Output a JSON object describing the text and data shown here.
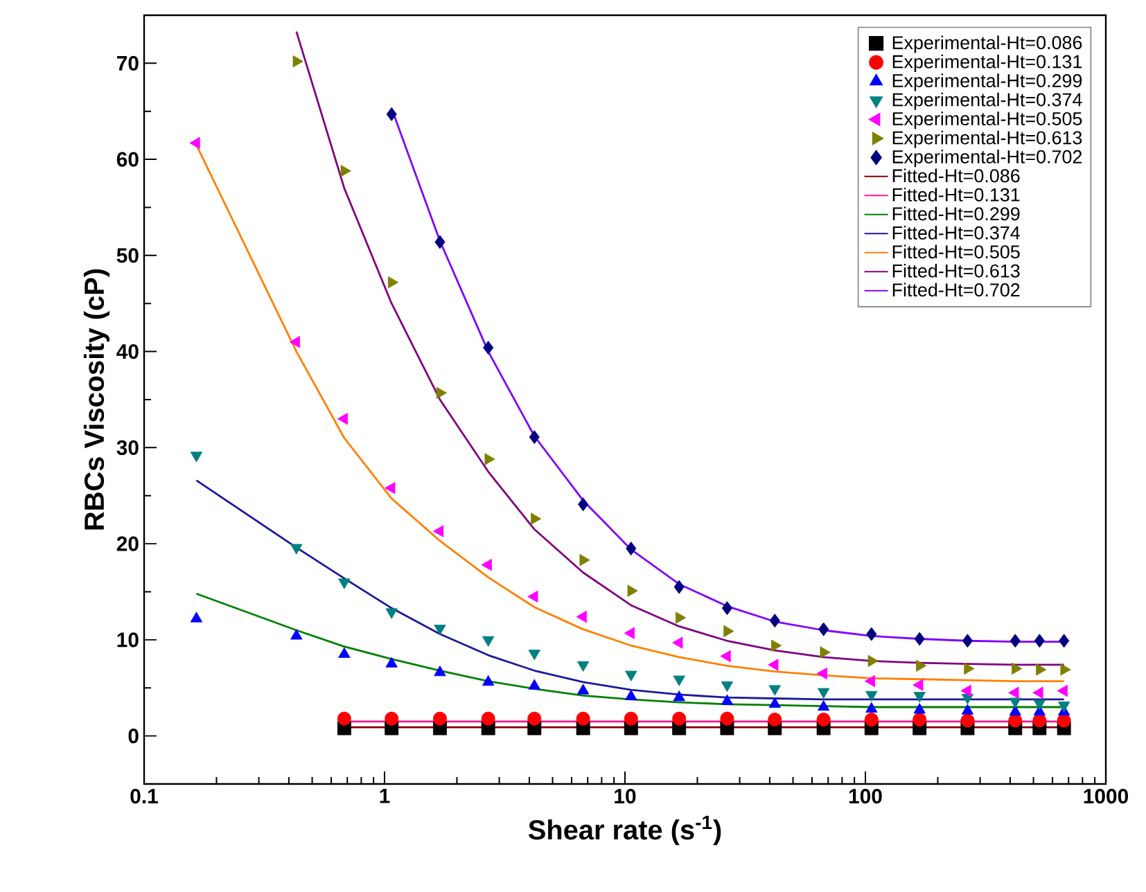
{
  "chart_data": {
    "type": "scatter",
    "xlabel": "Shear rate (s$^{-1}$)",
    "ylabel": "RBCs Viscosity (cP)",
    "log": "x",
    "xlim": [
      0.1,
      1000
    ],
    "ylim": [
      -5,
      75
    ],
    "xticks": [
      0.1,
      1,
      10,
      100,
      1000
    ],
    "yticks": [
      0,
      10,
      20,
      30,
      40,
      50,
      60,
      70
    ],
    "grid": false,
    "legend": "top right",
    "series": [
      {
        "name": "Experimental-Ht=0.086",
        "marker": "square",
        "color": "#000000",
        "x": [
          0.68,
          1.07,
          1.7,
          2.7,
          4.2,
          6.7,
          10.6,
          16.8,
          26.6,
          42,
          67,
          106,
          168,
          266,
          420,
          530,
          670
        ],
        "values": [
          0.8,
          0.8,
          0.8,
          0.8,
          0.8,
          0.8,
          0.8,
          0.8,
          0.8,
          0.8,
          0.8,
          0.8,
          0.8,
          0.8,
          0.8,
          0.8,
          0.8
        ]
      },
      {
        "name": "Experimental-Ht=0.131",
        "marker": "circle",
        "color": "#ff0000",
        "x": [
          0.68,
          1.07,
          1.7,
          2.7,
          4.2,
          6.7,
          10.6,
          16.8,
          26.6,
          42,
          67,
          106,
          168,
          266,
          420,
          530,
          670
        ],
        "values": [
          1.8,
          1.8,
          1.8,
          1.8,
          1.8,
          1.8,
          1.8,
          1.8,
          1.8,
          1.7,
          1.7,
          1.7,
          1.7,
          1.6,
          1.6,
          1.6,
          1.6
        ]
      },
      {
        "name": "Experimental-Ht=0.299",
        "marker": "triangle",
        "color": "#0000ff",
        "x": [
          0.165,
          0.43,
          0.68,
          1.07,
          1.7,
          2.7,
          4.2,
          6.7,
          10.6,
          16.8,
          26.6,
          42,
          67,
          106,
          168,
          266,
          420,
          530,
          670
        ],
        "values": [
          12.2,
          10.4,
          8.5,
          7.5,
          6.6,
          5.6,
          5.2,
          4.7,
          4.1,
          4.0,
          3.6,
          3.3,
          3.0,
          2.8,
          2.7,
          2.6,
          2.5,
          2.5,
          2.5
        ]
      },
      {
        "name": "Experimental-Ht=0.374",
        "marker": "triangle-down",
        "color": "#008080",
        "x": [
          0.165,
          0.43,
          0.68,
          1.07,
          1.7,
          2.7,
          4.2,
          6.7,
          10.6,
          16.8,
          26.6,
          42,
          67,
          106,
          168,
          266,
          420,
          530,
          670
        ],
        "values": [
          29.2,
          19.6,
          16.0,
          12.9,
          11.2,
          10.0,
          8.6,
          7.4,
          6.4,
          5.9,
          5.3,
          4.9,
          4.6,
          4.3,
          4.2,
          4.0,
          3.6,
          3.4,
          3.2
        ]
      },
      {
        "name": "Experimental-Ht=0.505",
        "marker": "triangle-left",
        "color": "#ff00ff",
        "x": [
          0.165,
          0.43,
          0.68,
          1.07,
          1.7,
          2.7,
          4.2,
          6.7,
          10.6,
          16.8,
          26.6,
          42,
          67,
          106,
          168,
          266,
          420,
          530,
          670
        ],
        "values": [
          61.7,
          41.0,
          33.0,
          25.8,
          21.3,
          17.8,
          14.5,
          12.4,
          10.7,
          9.7,
          8.3,
          7.4,
          6.5,
          5.7,
          5.3,
          4.7,
          4.5,
          4.5,
          4.7
        ]
      },
      {
        "name": "Experimental-Ht=0.613",
        "marker": "triangle-right",
        "color": "#808000",
        "x": [
          0.43,
          0.68,
          1.07,
          1.7,
          2.7,
          4.2,
          6.7,
          10.6,
          16.8,
          26.6,
          42,
          67,
          106,
          168,
          266,
          420,
          530,
          670
        ],
        "values": [
          70.2,
          58.8,
          47.2,
          35.7,
          28.8,
          22.6,
          18.3,
          15.1,
          12.3,
          10.9,
          9.4,
          8.7,
          7.8,
          7.3,
          7.0,
          7.0,
          6.9,
          6.9
        ]
      },
      {
        "name": "Experimental-Ht=0.702",
        "marker": "diamond",
        "color": "#000080",
        "x": [
          1.07,
          1.7,
          2.7,
          4.2,
          6.7,
          10.6,
          16.8,
          26.6,
          42,
          67,
          106,
          168,
          266,
          420,
          530,
          670
        ],
        "values": [
          64.7,
          51.4,
          40.4,
          31.1,
          24.1,
          19.5,
          15.5,
          13.3,
          12.0,
          11.1,
          10.6,
          10.1,
          9.9,
          9.9,
          9.9,
          9.9
        ]
      },
      {
        "name": "Fitted-Ht=0.086",
        "type": "line",
        "marker": "none",
        "color": "#800000",
        "x": [
          0.68,
          670
        ],
        "values": [
          0.9,
          0.9
        ]
      },
      {
        "name": "Fitted-Ht=0.131",
        "type": "line",
        "marker": "none",
        "color": "#ff1493",
        "x": [
          0.68,
          670
        ],
        "values": [
          1.5,
          1.5
        ]
      },
      {
        "name": "Fitted-Ht=0.299",
        "type": "line",
        "marker": "none",
        "color": "#008000",
        "x": [
          0.165,
          0.43,
          0.68,
          1.07,
          1.7,
          2.7,
          4.2,
          6.7,
          10.6,
          16.8,
          26.6,
          42,
          67,
          106,
          168,
          266,
          420,
          530,
          670
        ],
        "values": [
          14.8,
          11.0,
          9.3,
          8.0,
          6.8,
          5.7,
          4.9,
          4.2,
          3.8,
          3.5,
          3.3,
          3.2,
          3.1,
          3.0,
          3.0,
          3.0,
          3.0,
          3.0,
          3.0
        ]
      },
      {
        "name": "Fitted-Ht=0.374",
        "type": "line",
        "marker": "none",
        "color": "#1a1a9a",
        "x": [
          0.165,
          0.43,
          0.68,
          1.07,
          1.7,
          2.7,
          4.2,
          6.7,
          10.6,
          16.8,
          26.6,
          42,
          67,
          106,
          168,
          266,
          420,
          530,
          670
        ],
        "values": [
          26.6,
          19.6,
          16.4,
          13.3,
          10.6,
          8.4,
          6.8,
          5.6,
          4.8,
          4.3,
          4.0,
          3.9,
          3.8,
          3.8,
          3.8,
          3.8,
          3.8,
          3.8,
          3.8
        ]
      },
      {
        "name": "Fitted-Ht=0.505",
        "type": "line",
        "marker": "none",
        "color": "#ff8000",
        "x": [
          0.165,
          0.43,
          0.68,
          1.07,
          1.7,
          2.7,
          4.2,
          6.7,
          10.6,
          16.8,
          26.6,
          42,
          67,
          106,
          168,
          266,
          420,
          530,
          670
        ],
        "values": [
          61.5,
          40.0,
          31.0,
          24.7,
          20.3,
          16.5,
          13.4,
          11.1,
          9.4,
          8.2,
          7.3,
          6.7,
          6.3,
          6.0,
          5.9,
          5.8,
          5.7,
          5.7,
          5.7
        ]
      },
      {
        "name": "Fitted-Ht=0.613",
        "type": "line",
        "marker": "none",
        "color": "#800080",
        "x": [
          0.43,
          0.68,
          1.07,
          1.7,
          2.7,
          4.2,
          6.7,
          10.6,
          16.8,
          26.6,
          42,
          67,
          106,
          168,
          266,
          420,
          530,
          670
        ],
        "values": [
          73.3,
          57.0,
          45.0,
          35.0,
          27.5,
          21.5,
          17.0,
          13.6,
          11.4,
          9.9,
          8.9,
          8.2,
          7.8,
          7.6,
          7.5,
          7.4,
          7.4,
          7.4
        ]
      },
      {
        "name": "Fitted-Ht=0.702",
        "type": "line",
        "marker": "none",
        "color": "#8000ff",
        "x": [
          1.07,
          1.7,
          2.7,
          4.2,
          6.7,
          10.6,
          16.8,
          26.6,
          42,
          67,
          106,
          168,
          266,
          420,
          530,
          670
        ],
        "values": [
          65.3,
          51.5,
          40.0,
          31.2,
          24.5,
          19.4,
          15.8,
          13.5,
          11.9,
          11.0,
          10.4,
          10.1,
          9.9,
          9.8,
          9.8,
          9.8
        ]
      }
    ]
  }
}
